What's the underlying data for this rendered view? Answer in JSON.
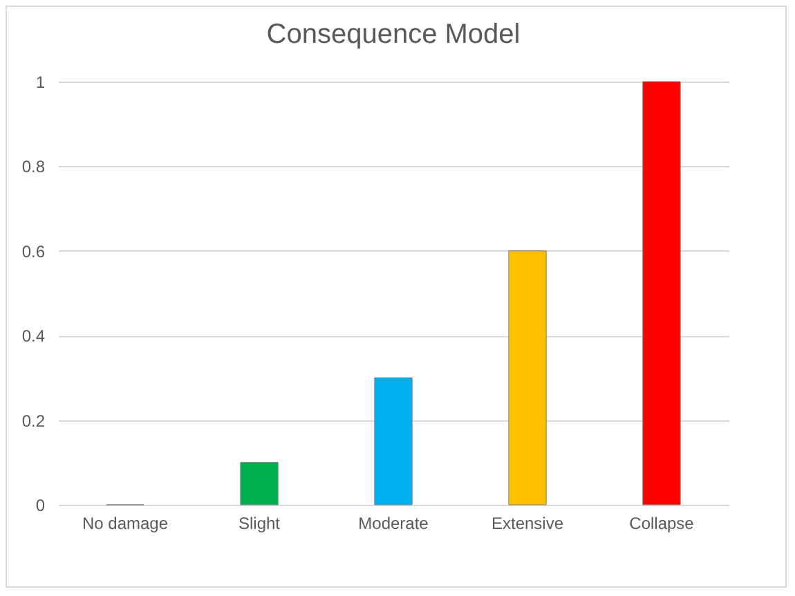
{
  "chart_data": {
    "type": "bar",
    "title": "Consequence Model",
    "categories": [
      "No damage",
      "Slight",
      "Moderate",
      "Extensive",
      "Collapse"
    ],
    "values": [
      0,
      0.1,
      0.3,
      0.6,
      1
    ],
    "colors": [
      null,
      "#00b050",
      "#00b0f0",
      "#ffc000",
      "#ff0000"
    ],
    "ylim": [
      0,
      1
    ],
    "yticks": [
      0,
      0.2,
      0.4,
      0.6,
      0.8,
      1
    ],
    "grid": "y"
  }
}
